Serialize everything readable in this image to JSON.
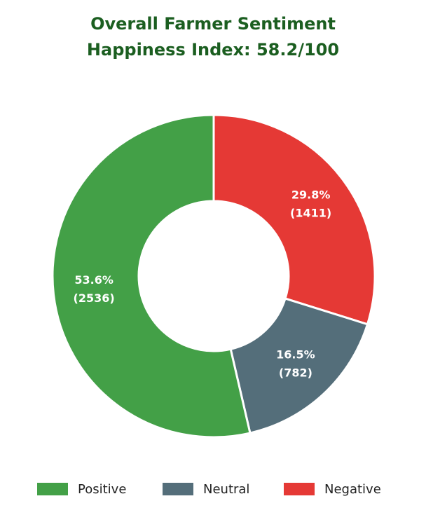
{
  "chart_data": {
    "type": "donut",
    "title": "Overall Farmer Sentiment",
    "subtitle": "Happiness Index: 58.2/100",
    "categories": [
      "Positive",
      "Neutral",
      "Negative"
    ],
    "values": [
      2536,
      782,
      1411
    ],
    "value_labels": [
      "(2536)",
      "(782)",
      "(1411)"
    ],
    "percent_labels": [
      "53.6%",
      "16.5%",
      "29.8%"
    ],
    "colors": [
      "#43a047",
      "#546e7a",
      "#e53935"
    ],
    "draw_order": [
      2,
      1,
      0
    ]
  }
}
